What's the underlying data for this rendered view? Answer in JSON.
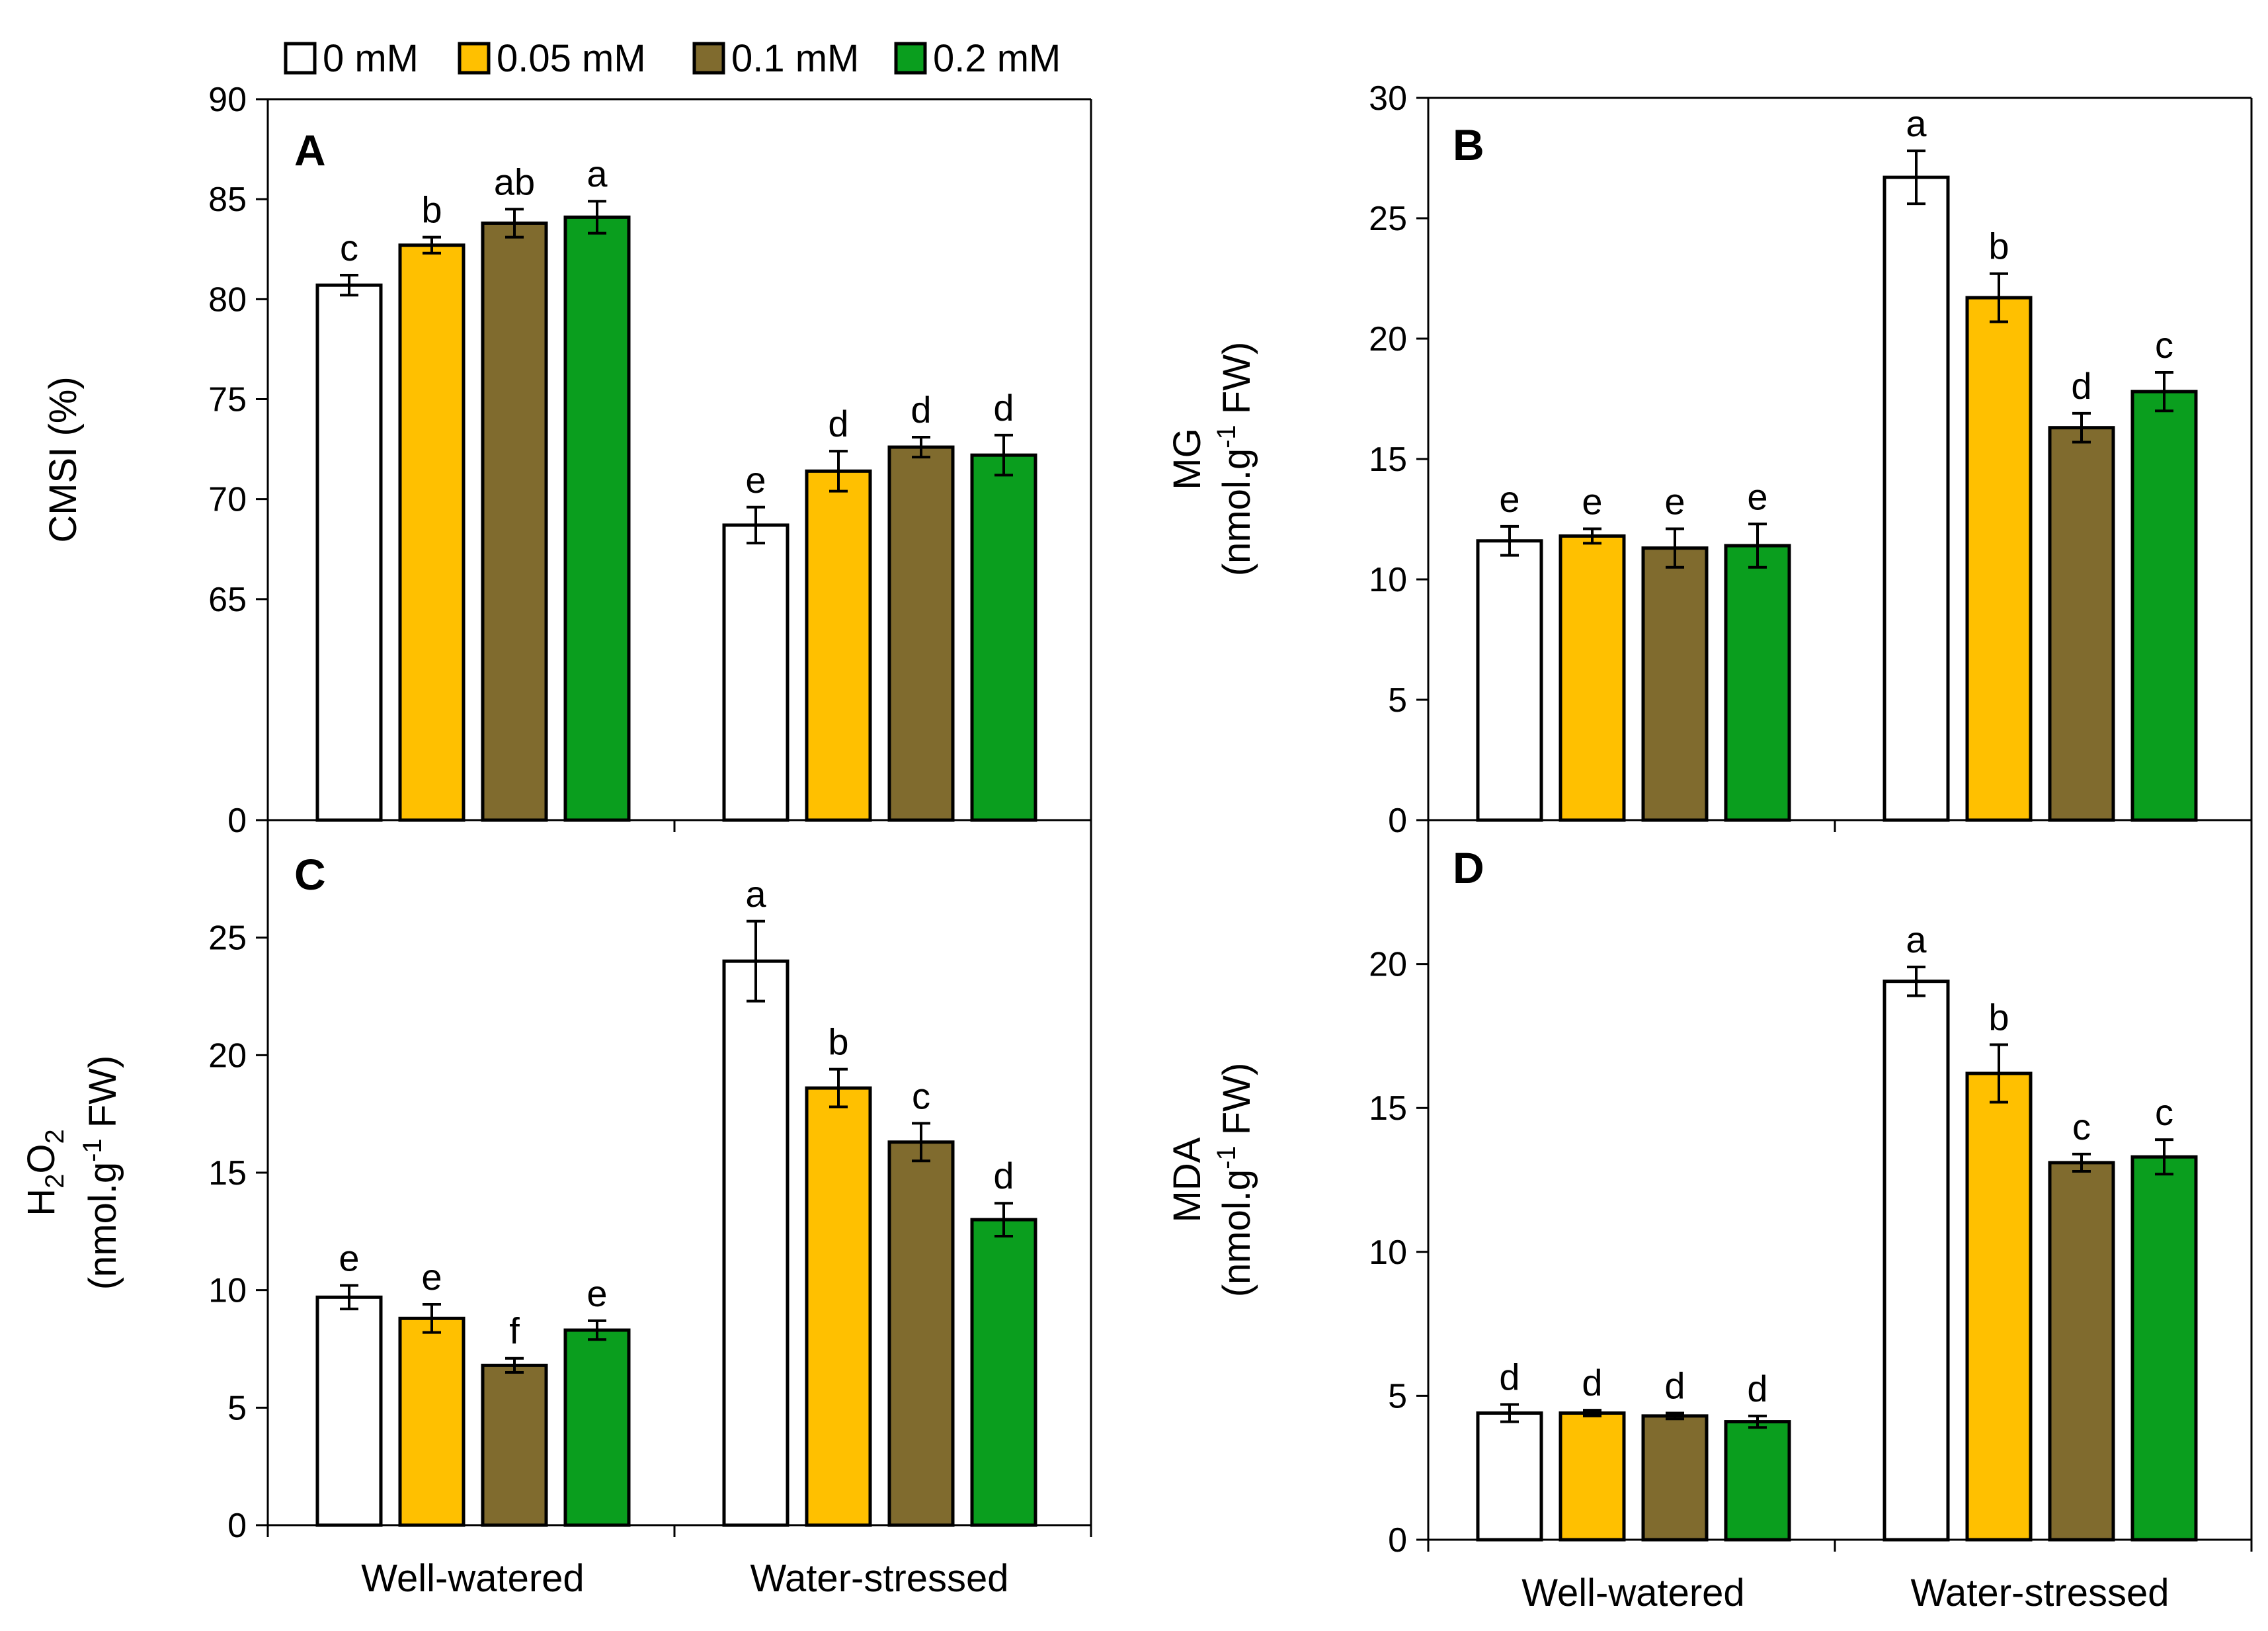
{
  "legend": {
    "entries": [
      {
        "label": "0 mM",
        "color": "#ffffff"
      },
      {
        "label": "0.05 mM",
        "color": "#ffc000"
      },
      {
        "label": "0.1 mM",
        "color": "#806b2e"
      },
      {
        "label": "0.2 mM",
        "color": "#0a9e1e"
      }
    ]
  },
  "chart_data": [
    {
      "panel": "A",
      "type": "bar",
      "ylabel": "CMSI (%)",
      "ylabel2": "",
      "categories": [
        "Well-watered",
        "Water-stressed"
      ],
      "yticks": [
        "0",
        "65",
        "70",
        "75",
        "80",
        "85",
        "90"
      ],
      "axis_break": {
        "lower": 0,
        "upper_start": 60,
        "upper_end": 90
      },
      "series": [
        {
          "name": "0 mM",
          "color": "#ffffff",
          "values": [
            80.7,
            68.7
          ],
          "errors": [
            0.5,
            0.9
          ],
          "letters": [
            "c",
            "e"
          ]
        },
        {
          "name": "0.05 mM",
          "color": "#ffc000",
          "values": [
            82.7,
            71.4
          ],
          "errors": [
            0.4,
            1.0
          ],
          "letters": [
            "b",
            "d"
          ]
        },
        {
          "name": "0.1 mM",
          "color": "#806b2e",
          "values": [
            83.8,
            72.6
          ],
          "errors": [
            0.7,
            0.5
          ],
          "letters": [
            "ab",
            "d"
          ]
        },
        {
          "name": "0.2 mM",
          "color": "#0a9e1e",
          "values": [
            84.1,
            72.2
          ],
          "errors": [
            0.8,
            1.0
          ],
          "letters": [
            "a",
            "d"
          ]
        }
      ]
    },
    {
      "panel": "B",
      "type": "bar",
      "ylabel": "MG",
      "ylabel2": "(nmol.g-1 FW)",
      "categories": [
        "Well-watered",
        "Water-stressed"
      ],
      "ylim": [
        0,
        30
      ],
      "yticks": [
        "0",
        "5",
        "10",
        "15",
        "20",
        "25",
        "30"
      ],
      "series": [
        {
          "name": "0 mM",
          "color": "#ffffff",
          "values": [
            11.6,
            26.7
          ],
          "errors": [
            0.6,
            1.1
          ],
          "letters": [
            "e",
            "a"
          ]
        },
        {
          "name": "0.05 mM",
          "color": "#ffc000",
          "values": [
            11.8,
            21.7
          ],
          "errors": [
            0.3,
            1.0
          ],
          "letters": [
            "e",
            "b"
          ]
        },
        {
          "name": "0.1 mM",
          "color": "#806b2e",
          "values": [
            11.3,
            16.3
          ],
          "errors": [
            0.8,
            0.6
          ],
          "letters": [
            "e",
            "d"
          ]
        },
        {
          "name": "0.2 mM",
          "color": "#0a9e1e",
          "values": [
            11.4,
            17.8
          ],
          "errors": [
            0.9,
            0.8
          ],
          "letters": [
            "e",
            "c"
          ]
        }
      ]
    },
    {
      "panel": "C",
      "type": "bar",
      "ylabel": "H2O2",
      "ylabel2": "(nmol.g-1 FW)",
      "categories": [
        "Well-watered",
        "Water-stressed"
      ],
      "ylim": [
        0,
        30
      ],
      "yticks": [
        "0",
        "5",
        "10",
        "15",
        "20",
        "25"
      ],
      "series": [
        {
          "name": "0 mM",
          "color": "#ffffff",
          "values": [
            9.7,
            24.0
          ],
          "errors": [
            0.5,
            1.7
          ],
          "letters": [
            "e",
            "a"
          ]
        },
        {
          "name": "0.05 mM",
          "color": "#ffc000",
          "values": [
            8.8,
            18.6
          ],
          "errors": [
            0.6,
            0.8
          ],
          "letters": [
            "e",
            "b"
          ]
        },
        {
          "name": "0.1 mM",
          "color": "#806b2e",
          "values": [
            6.8,
            16.3
          ],
          "errors": [
            0.3,
            0.8
          ],
          "letters": [
            "f",
            "c"
          ]
        },
        {
          "name": "0.2 mM",
          "color": "#0a9e1e",
          "values": [
            8.3,
            13.0
          ],
          "errors": [
            0.4,
            0.7
          ],
          "letters": [
            "e",
            "d"
          ]
        }
      ]
    },
    {
      "panel": "D",
      "type": "bar",
      "ylabel": "MDA",
      "ylabel2": "(nmol.g-1 FW)",
      "categories": [
        "Well-watered",
        "Water-stressed"
      ],
      "ylim": [
        0,
        25
      ],
      "yticks": [
        "0",
        "5",
        "10",
        "15",
        "20"
      ],
      "series": [
        {
          "name": "0 mM",
          "color": "#ffffff",
          "values": [
            4.4,
            19.4
          ],
          "errors": [
            0.3,
            0.5
          ],
          "letters": [
            "d",
            "a"
          ]
        },
        {
          "name": "0.05 mM",
          "color": "#ffc000",
          "values": [
            4.4,
            16.2
          ],
          "errors": [
            0.1,
            1.0
          ],
          "letters": [
            "d",
            "b"
          ]
        },
        {
          "name": "0.1 mM",
          "color": "#806b2e",
          "values": [
            4.3,
            13.1
          ],
          "errors": [
            0.1,
            0.3
          ],
          "letters": [
            "d",
            "c"
          ]
        },
        {
          "name": "0.2 mM",
          "color": "#0a9e1e",
          "values": [
            4.1,
            13.3
          ],
          "errors": [
            0.2,
            0.6
          ],
          "letters": [
            "d",
            "c"
          ]
        }
      ]
    }
  ]
}
